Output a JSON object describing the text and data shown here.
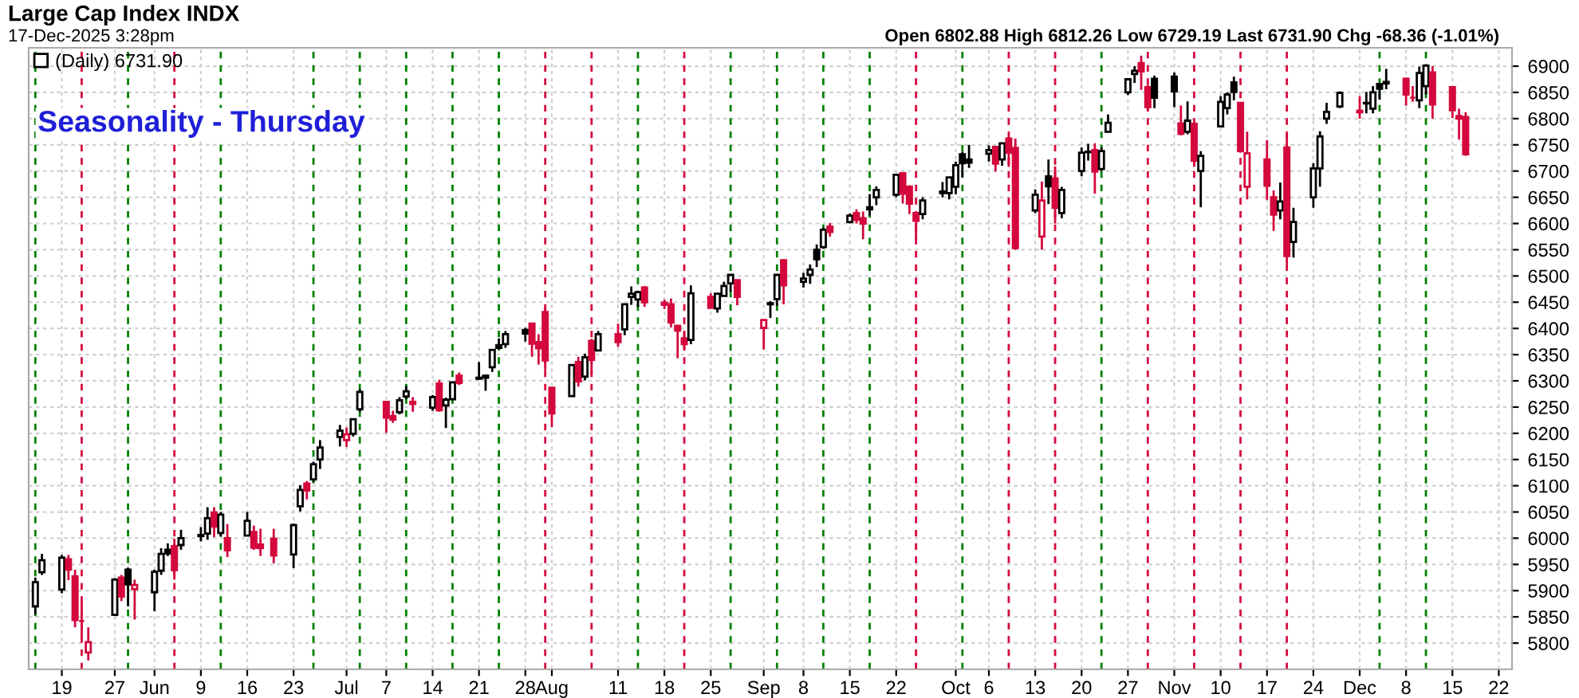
{
  "chart_data": {
    "type": "candlestick",
    "title": "Large Cap Index INDX",
    "subtitle": "17-Dec-2025 3:28pm",
    "annotations": [
      "Open 6802.88 High 6812.26 Low 6729.19 Last 6731.90 Chg -68.36 (-1.01%)",
      "Seasonality - Thursday"
    ],
    "x": [
      "2025-05-15",
      "2025-05-16",
      "2025-05-19",
      "2025-05-20",
      "2025-05-21",
      "2025-05-22",
      "2025-05-23",
      "2025-05-27",
      "2025-05-28",
      "2025-05-29",
      "2025-05-30",
      "2025-06-02",
      "2025-06-03",
      "2025-06-04",
      "2025-06-05",
      "2025-06-06",
      "2025-06-09",
      "2025-06-10",
      "2025-06-11",
      "2025-06-12",
      "2025-06-13",
      "2025-06-16",
      "2025-06-17",
      "2025-06-18",
      "2025-06-20",
      "2025-06-23",
      "2025-06-24",
      "2025-06-25",
      "2025-06-26",
      "2025-06-27",
      "2025-06-30",
      "2025-07-01",
      "2025-07-02",
      "2025-07-03",
      "2025-07-07",
      "2025-07-08",
      "2025-07-09",
      "2025-07-10",
      "2025-07-11",
      "2025-07-14",
      "2025-07-15",
      "2025-07-16",
      "2025-07-17",
      "2025-07-18",
      "2025-07-21",
      "2025-07-22",
      "2025-07-23",
      "2025-07-24",
      "2025-07-25",
      "2025-07-28",
      "2025-07-29",
      "2025-07-30",
      "2025-07-31",
      "2025-08-01",
      "2025-08-04",
      "2025-08-05",
      "2025-08-06",
      "2025-08-07",
      "2025-08-08",
      "2025-08-11",
      "2025-08-12",
      "2025-08-13",
      "2025-08-14",
      "2025-08-15",
      "2025-08-18",
      "2025-08-19",
      "2025-08-20",
      "2025-08-21",
      "2025-08-22",
      "2025-08-25",
      "2025-08-26",
      "2025-08-27",
      "2025-08-28",
      "2025-08-29",
      "2025-09-02",
      "2025-09-03",
      "2025-09-04",
      "2025-09-05",
      "2025-09-08",
      "2025-09-09",
      "2025-09-10",
      "2025-09-11",
      "2025-09-12",
      "2025-09-15",
      "2025-09-16",
      "2025-09-17",
      "2025-09-18",
      "2025-09-19",
      "2025-09-22",
      "2025-09-23",
      "2025-09-24",
      "2025-09-25",
      "2025-09-26",
      "2025-09-29",
      "2025-09-30",
      "2025-10-01",
      "2025-10-02",
      "2025-10-03",
      "2025-10-06",
      "2025-10-07",
      "2025-10-08",
      "2025-10-09",
      "2025-10-10",
      "2025-10-13",
      "2025-10-14",
      "2025-10-15",
      "2025-10-16",
      "2025-10-17",
      "2025-10-20",
      "2025-10-21",
      "2025-10-22",
      "2025-10-23",
      "2025-10-24",
      "2025-10-27",
      "2025-10-28",
      "2025-10-29",
      "2025-10-30",
      "2025-10-31",
      "2025-11-03",
      "2025-11-04",
      "2025-11-05",
      "2025-11-06",
      "2025-11-07",
      "2025-11-10",
      "2025-11-11",
      "2025-11-12",
      "2025-11-13",
      "2025-11-14",
      "2025-11-17",
      "2025-11-18",
      "2025-11-19",
      "2025-11-20",
      "2025-11-21",
      "2025-11-24",
      "2025-11-25",
      "2025-11-26",
      "2025-11-28",
      "2025-12-01",
      "2025-12-02",
      "2025-12-03",
      "2025-12-04",
      "2025-12-05",
      "2025-12-08",
      "2025-12-09",
      "2025-12-10",
      "2025-12-11",
      "2025-12-12",
      "2025-12-15",
      "2025-12-16",
      "2025-12-17"
    ],
    "series": [
      {
        "name": "(Daily) 6731.90",
        "color": "#000000",
        "colors": [
          "#000000",
          "#000000",
          "#000000",
          "#d4083c",
          "#d4083c",
          "#d4083c",
          "#d4083c",
          "#000000",
          "#d4083c",
          "#000000",
          "#d4083c",
          "#000000",
          "#000000",
          "#000000",
          "#d4083c",
          "#000000",
          "#000000",
          "#000000",
          "#d4083c",
          "#000000",
          "#d4083c",
          "#000000",
          "#d4083c",
          "#d4083c",
          "#d4083c",
          "#000000",
          "#000000",
          "#d4083c",
          "#000000",
          "#000000",
          "#000000",
          "#d4083c",
          "#000000",
          "#000000",
          "#d4083c",
          "#d4083c",
          "#000000",
          "#000000",
          "#d4083c",
          "#000000",
          "#d4083c",
          "#000000",
          "#000000",
          "#d4083c",
          "#000000",
          "#000000",
          "#000000",
          "#000000",
          "#000000",
          "#000000",
          "#d4083c",
          "#d4083c",
          "#d4083c",
          "#d4083c",
          "#000000",
          "#d4083c",
          "#000000",
          "#d4083c",
          "#000000",
          "#d4083c",
          "#000000",
          "#000000",
          "#000000",
          "#d4083c",
          "#d4083c",
          "#d4083c",
          "#d4083c",
          "#d4083c",
          "#000000",
          "#d4083c",
          "#000000",
          "#000000",
          "#000000",
          "#d4083c",
          "#d4083c",
          "#000000",
          "#000000",
          "#d4083c",
          "#000000",
          "#000000",
          "#000000",
          "#000000",
          "#d4083c",
          "#000000",
          "#d4083c",
          "#d4083c",
          "#000000",
          "#000000",
          "#000000",
          "#d4083c",
          "#d4083c",
          "#d4083c",
          "#000000",
          "#000000",
          "#000000",
          "#000000",
          "#000000",
          "#000000",
          "#000000",
          "#d4083c",
          "#000000",
          "#d4083c",
          "#d4083c",
          "#000000",
          "#d4083c",
          "#000000",
          "#d4083c",
          "#000000",
          "#000000",
          "#000000",
          "#d4083c",
          "#000000",
          "#000000",
          "#000000",
          "#000000",
          "#d4083c",
          "#d4083c",
          "#000000",
          "#000000",
          "#d4083c",
          "#000000",
          "#d4083c",
          "#000000",
          "#000000",
          "#000000",
          "#000000",
          "#d4083c",
          "#d4083c",
          "#d4083c",
          "#d4083c",
          "#000000",
          "#d4083c",
          "#000000",
          "#000000",
          "#000000",
          "#000000",
          "#000000",
          "#d4083c",
          "#000000",
          "#000000",
          "#000000",
          "#000000",
          "#d4083c",
          "#d4083c",
          "#000000",
          "#000000",
          "#d4083c",
          "#d4083c",
          "#d4083c",
          "#d4083c"
        ],
        "ohlc": [
          [
            5870,
            5925,
            5855,
            5916
          ],
          [
            5935,
            5970,
            5930,
            5958
          ],
          [
            5902,
            5968,
            5895,
            5963
          ],
          [
            5960,
            5968,
            5920,
            5940
          ],
          [
            5927,
            5940,
            5830,
            5844
          ],
          [
            5842,
            5878,
            5810,
            5842
          ],
          [
            5782,
            5830,
            5767,
            5802
          ],
          [
            5854,
            5924,
            5854,
            5921
          ],
          [
            5925,
            5930,
            5880,
            5889
          ],
          [
            5940,
            5944,
            5870,
            5912
          ],
          [
            5903,
            5921,
            5845,
            5911
          ],
          [
            5897,
            5940,
            5861,
            5936
          ],
          [
            5938,
            5981,
            5930,
            5970
          ],
          [
            5978,
            5990,
            5966,
            5971
          ],
          [
            5985,
            5999,
            5921,
            5939
          ],
          [
            5987,
            6016,
            5978,
            6000
          ],
          [
            6004,
            6021,
            5994,
            6006
          ],
          [
            6009,
            6059,
            5997,
            6038
          ],
          [
            6049,
            6059,
            6002,
            6022
          ],
          [
            6010,
            6050,
            6003,
            6045
          ],
          [
            6000,
            6027,
            5964,
            5977
          ],
          [
            6005,
            6050,
            6005,
            6033
          ],
          [
            6012,
            6024,
            5978,
            5982
          ],
          [
            5988,
            6018,
            5966,
            5981
          ],
          [
            5999,
            6018,
            5952,
            5967
          ],
          [
            5969,
            6028,
            5943,
            6025
          ],
          [
            6061,
            6101,
            6051,
            6092
          ],
          [
            6104,
            6109,
            6074,
            6091
          ],
          [
            6112,
            6146,
            6107,
            6141
          ],
          [
            6150,
            6187,
            6132,
            6173
          ],
          [
            6193,
            6216,
            6175,
            6205
          ],
          [
            6187,
            6211,
            6174,
            6198
          ],
          [
            6199,
            6228,
            6194,
            6227
          ],
          [
            6246,
            6284,
            6241,
            6279
          ],
          [
            6260,
            6262,
            6201,
            6230
          ],
          [
            6233,
            6243,
            6220,
            6226
          ],
          [
            6240,
            6269,
            6236,
            6263
          ],
          [
            6270,
            6290,
            6265,
            6280
          ],
          [
            6256,
            6269,
            6241,
            6260
          ],
          [
            6249,
            6273,
            6243,
            6269
          ],
          [
            6295,
            6302,
            6241,
            6244
          ],
          [
            6253,
            6268,
            6210,
            6264
          ],
          [
            6265,
            6299,
            6263,
            6297
          ],
          [
            6310,
            6316,
            6292,
            6296
          ],
          [
            6304,
            6336,
            6302,
            6306
          ],
          [
            6306,
            6310,
            6281,
            6310
          ],
          [
            6326,
            6360,
            6317,
            6359
          ],
          [
            6368,
            6381,
            6360,
            6363
          ],
          [
            6370,
            6395,
            6363,
            6389
          ],
          [
            6397,
            6401,
            6375,
            6390
          ],
          [
            6409,
            6410,
            6346,
            6371
          ],
          [
            6374,
            6389,
            6331,
            6362
          ],
          [
            6431,
            6438,
            6320,
            6339
          ],
          [
            6287,
            6288,
            6212,
            6238
          ],
          [
            6271,
            6330,
            6271,
            6330
          ],
          [
            6336,
            6346,
            6289,
            6299
          ],
          [
            6308,
            6352,
            6301,
            6345
          ],
          [
            6376,
            6380,
            6312,
            6340
          ],
          [
            6358,
            6395,
            6358,
            6389
          ],
          [
            6389,
            6409,
            6365,
            6374
          ],
          [
            6398,
            6446,
            6387,
            6446
          ],
          [
            6460,
            6480,
            6445,
            6466
          ],
          [
            6455,
            6472,
            6441,
            6469
          ],
          [
            6478,
            6481,
            6441,
            6450
          ],
          [
            6445,
            6455,
            6437,
            6449
          ],
          [
            6446,
            6457,
            6402,
            6411
          ],
          [
            6405,
            6405,
            6343,
            6396
          ],
          [
            6381,
            6393,
            6360,
            6370
          ],
          [
            6378,
            6482,
            6370,
            6467
          ],
          [
            6460,
            6467,
            6438,
            6439
          ],
          [
            6438,
            6468,
            6430,
            6466
          ],
          [
            6462,
            6489,
            6461,
            6481
          ],
          [
            6486,
            6502,
            6470,
            6502
          ],
          [
            6492,
            6493,
            6444,
            6460
          ],
          [
            6401,
            6416,
            6360,
            6416
          ],
          [
            6446,
            6452,
            6420,
            6448
          ],
          [
            6456,
            6502,
            6443,
            6502
          ],
          [
            6530,
            6532,
            6446,
            6482
          ],
          [
            6489,
            6506,
            6478,
            6495
          ],
          [
            6502,
            6522,
            6485,
            6512
          ],
          [
            6550,
            6560,
            6517,
            6532
          ],
          [
            6555,
            6592,
            6552,
            6588
          ],
          [
            6594,
            6601,
            6575,
            6584
          ],
          [
            6603,
            6619,
            6600,
            6615
          ],
          [
            6620,
            6627,
            6600,
            6607
          ],
          [
            6610,
            6623,
            6570,
            6600
          ],
          [
            6627,
            6656,
            6615,
            6631
          ],
          [
            6650,
            6671,
            6635,
            6664
          ],
          [
            6655,
            6694,
            6650,
            6693
          ],
          [
            6696,
            6697,
            6638,
            6657
          ],
          [
            6670,
            6673,
            6618,
            6638
          ],
          [
            6620,
            6620,
            6570,
            6605
          ],
          [
            6618,
            6650,
            6608,
            6644
          ],
          [
            6658,
            6679,
            6650,
            6661
          ],
          [
            6658,
            6689,
            6646,
            6688
          ],
          [
            6670,
            6718,
            6656,
            6711
          ],
          [
            6732,
            6737,
            6688,
            6715
          ],
          [
            6722,
            6750,
            6706,
            6716
          ],
          [
            6733,
            6749,
            6718,
            6740
          ],
          [
            6746,
            6747,
            6699,
            6714
          ],
          [
            6722,
            6754,
            6710,
            6753
          ],
          [
            6762,
            6764,
            6708,
            6735
          ],
          [
            6744,
            6762,
            6550,
            6553
          ],
          [
            6625,
            6665,
            6620,
            6655
          ],
          [
            6575,
            6680,
            6550,
            6644
          ],
          [
            6690,
            6722,
            6637,
            6671
          ],
          [
            6686,
            6709,
            6600,
            6630
          ],
          [
            6620,
            6670,
            6610,
            6664
          ],
          [
            6700,
            6745,
            6690,
            6735
          ],
          [
            6737,
            6752,
            6720,
            6736
          ],
          [
            6740,
            6753,
            6657,
            6699
          ],
          [
            6704,
            6745,
            6700,
            6738
          ],
          [
            6775,
            6808,
            6775,
            6792
          ],
          [
            6850,
            6876,
            6845,
            6875
          ],
          [
            6885,
            6900,
            6868,
            6891
          ],
          [
            6906,
            6920,
            6855,
            6890
          ],
          [
            6860,
            6864,
            6815,
            6822
          ],
          [
            6876,
            6882,
            6820,
            6840
          ],
          [
            6880,
            6888,
            6822,
            6852
          ],
          [
            6791,
            6825,
            6768,
            6771
          ],
          [
            6775,
            6833,
            6770,
            6796
          ],
          [
            6790,
            6790,
            6708,
            6720
          ],
          [
            6700,
            6738,
            6631,
            6729
          ],
          [
            6785,
            6843,
            6784,
            6832
          ],
          [
            6820,
            6850,
            6808,
            6846
          ],
          [
            6869,
            6880,
            6835,
            6851
          ],
          [
            6830,
            6830,
            6735,
            6738
          ],
          [
            6670,
            6775,
            6646,
            6734
          ],
          [
            6722,
            6759,
            6645,
            6672
          ],
          [
            6650,
            6663,
            6586,
            6617
          ],
          [
            6625,
            6678,
            6608,
            6642
          ],
          [
            6745,
            6770,
            6522,
            6538
          ],
          [
            6565,
            6630,
            6535,
            6603
          ],
          [
            6650,
            6715,
            6630,
            6705
          ],
          [
            6705,
            6776,
            6670,
            6766
          ],
          [
            6800,
            6830,
            6790,
            6813
          ],
          [
            6823,
            6852,
            6820,
            6849
          ],
          [
            6815,
            6843,
            6800,
            6812
          ],
          [
            6830,
            6851,
            6810,
            6829
          ],
          [
            6819,
            6862,
            6810,
            6850
          ],
          [
            6866,
            6866,
            6836,
            6857
          ],
          [
            6867,
            6895,
            6856,
            6870
          ],
          [
            6876,
            6878,
            6825,
            6846
          ],
          [
            6840,
            6862,
            6832,
            6840
          ],
          [
            6835,
            6899,
            6820,
            6887
          ],
          [
            6862,
            6904,
            6846,
            6901
          ],
          [
            6888,
            6900,
            6800,
            6827
          ],
          [
            6860,
            6862,
            6801,
            6816
          ],
          [
            6805,
            6819,
            6760,
            6800
          ],
          [
            6802.88,
            6812.26,
            6729.19,
            6731.9
          ]
        ]
      }
    ],
    "xlim": [
      "2025-05-14",
      "2025-12-24"
    ],
    "xticks": [
      {
        "value": "2025-05-19",
        "label": "19"
      },
      {
        "value": "2025-05-27",
        "label": "27"
      },
      {
        "value": "2025-06-02",
        "label": "Jun"
      },
      {
        "value": "2025-06-09",
        "label": "9"
      },
      {
        "value": "2025-06-16",
        "label": "16"
      },
      {
        "value": "2025-06-23",
        "label": "23"
      },
      {
        "value": "2025-07-01",
        "label": "Jul"
      },
      {
        "value": "2025-07-07",
        "label": "7"
      },
      {
        "value": "2025-07-14",
        "label": "14"
      },
      {
        "value": "2025-07-21",
        "label": "21"
      },
      {
        "value": "2025-07-28",
        "label": "28"
      },
      {
        "value": "2025-08-01",
        "label": "Aug"
      },
      {
        "value": "2025-08-11",
        "label": "11"
      },
      {
        "value": "2025-08-18",
        "label": "18"
      },
      {
        "value": "2025-08-25",
        "label": "25"
      },
      {
        "value": "2025-09-02",
        "label": "Sep"
      },
      {
        "value": "2025-09-08",
        "label": "8"
      },
      {
        "value": "2025-09-15",
        "label": "15"
      },
      {
        "value": "2025-09-22",
        "label": "22"
      },
      {
        "value": "2025-10-01",
        "label": "Oct"
      },
      {
        "value": "2025-10-06",
        "label": "6"
      },
      {
        "value": "2025-10-13",
        "label": "13"
      },
      {
        "value": "2025-10-20",
        "label": "20"
      },
      {
        "value": "2025-10-27",
        "label": "27"
      },
      {
        "value": "2025-11-03",
        "label": "Nov"
      },
      {
        "value": "2025-11-10",
        "label": "10"
      },
      {
        "value": "2025-11-17",
        "label": "17"
      },
      {
        "value": "2025-11-24",
        "label": "24"
      },
      {
        "value": "2025-12-01",
        "label": "Dec"
      },
      {
        "value": "2025-12-08",
        "label": "8"
      },
      {
        "value": "2025-12-15",
        "label": "15"
      },
      {
        "value": "2025-12-22",
        "label": "22"
      }
    ],
    "ylim": [
      5750,
      6935
    ],
    "yticks": [
      5800,
      5850,
      5900,
      5950,
      6000,
      6050,
      6100,
      6150,
      6200,
      6250,
      6300,
      6350,
      6400,
      6450,
      6500,
      6550,
      6600,
      6650,
      6700,
      6750,
      6800,
      6850,
      6900
    ],
    "grid": true,
    "legend": "top left",
    "ref_lines": [
      {
        "axis": "x",
        "value": "2025-05-15",
        "color": "#008000",
        "line_style": "dashed"
      },
      {
        "axis": "x",
        "value": "2025-05-22",
        "color": "#d4083c",
        "line_style": "dashed"
      },
      {
        "axis": "x",
        "value": "2025-05-29",
        "color": "#008000",
        "line_style": "dashed"
      },
      {
        "axis": "x",
        "value": "2025-06-05",
        "color": "#d4083c",
        "line_style": "dashed"
      },
      {
        "axis": "x",
        "value": "2025-06-12",
        "color": "#008000",
        "line_style": "dashed"
      },
      {
        "axis": "x",
        "value": "2025-06-26",
        "color": "#008000",
        "line_style": "dashed"
      },
      {
        "axis": "x",
        "value": "2025-07-03",
        "color": "#008000",
        "line_style": "dashed"
      },
      {
        "axis": "x",
        "value": "2025-07-10",
        "color": "#008000",
        "line_style": "dashed"
      },
      {
        "axis": "x",
        "value": "2025-07-17",
        "color": "#008000",
        "line_style": "dashed"
      },
      {
        "axis": "x",
        "value": "2025-07-24",
        "color": "#008000",
        "line_style": "dashed"
      },
      {
        "axis": "x",
        "value": "2025-07-31",
        "color": "#d4083c",
        "line_style": "dashed"
      },
      {
        "axis": "x",
        "value": "2025-08-07",
        "color": "#d4083c",
        "line_style": "dashed"
      },
      {
        "axis": "x",
        "value": "2025-08-14",
        "color": "#008000",
        "line_style": "dashed"
      },
      {
        "axis": "x",
        "value": "2025-08-21",
        "color": "#d4083c",
        "line_style": "dashed"
      },
      {
        "axis": "x",
        "value": "2025-08-28",
        "color": "#008000",
        "line_style": "dashed"
      },
      {
        "axis": "x",
        "value": "2025-09-04",
        "color": "#008000",
        "line_style": "dashed"
      },
      {
        "axis": "x",
        "value": "2025-09-11",
        "color": "#008000",
        "line_style": "dashed"
      },
      {
        "axis": "x",
        "value": "2025-09-18",
        "color": "#008000",
        "line_style": "dashed"
      },
      {
        "axis": "x",
        "value": "2025-09-25",
        "color": "#d4083c",
        "line_style": "dashed"
      },
      {
        "axis": "x",
        "value": "2025-10-02",
        "color": "#008000",
        "line_style": "dashed"
      },
      {
        "axis": "x",
        "value": "2025-10-09",
        "color": "#d4083c",
        "line_style": "dashed"
      },
      {
        "axis": "x",
        "value": "2025-10-16",
        "color": "#d4083c",
        "line_style": "dashed"
      },
      {
        "axis": "x",
        "value": "2025-10-23",
        "color": "#008000",
        "line_style": "dashed"
      },
      {
        "axis": "x",
        "value": "2025-10-30",
        "color": "#d4083c",
        "line_style": "dashed"
      },
      {
        "axis": "x",
        "value": "2025-11-06",
        "color": "#d4083c",
        "line_style": "dashed"
      },
      {
        "axis": "x",
        "value": "2025-11-13",
        "color": "#d4083c",
        "line_style": "dashed"
      },
      {
        "axis": "x",
        "value": "2025-11-20",
        "color": "#d4083c",
        "line_style": "dashed"
      },
      {
        "axis": "x",
        "value": "2025-12-04",
        "color": "#008000",
        "line_style": "dashed"
      },
      {
        "axis": "x",
        "value": "2025-12-11",
        "color": "#008000",
        "line_style": "dashed"
      }
    ]
  }
}
